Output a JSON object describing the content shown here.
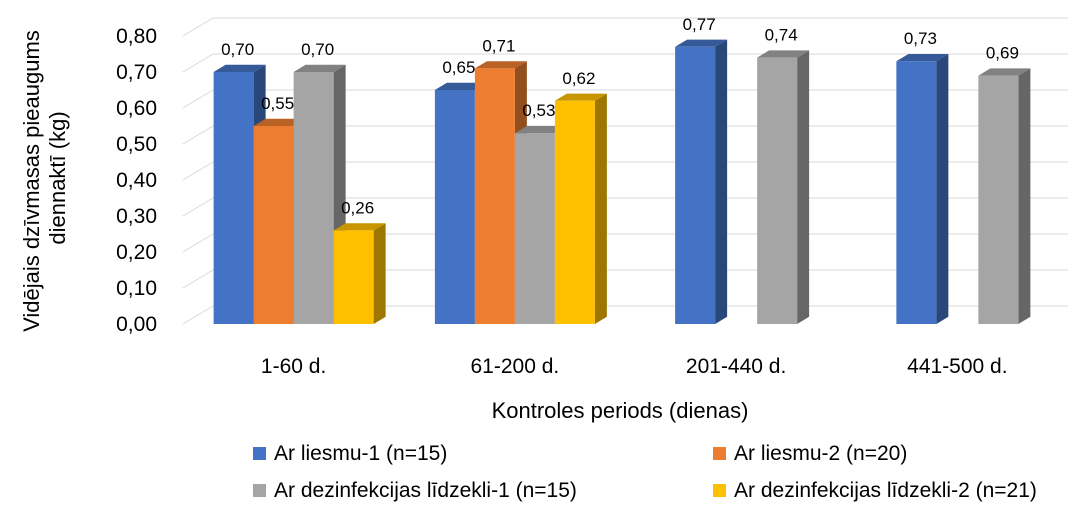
{
  "chart_data": {
    "type": "bar",
    "title": "",
    "xlabel": "Kontroles periods (dienas)",
    "ylabel": "Vidējais dzīvmasas pieaugums diennaktī (kg)",
    "ylabel_lines": [
      "Vidējais dzīvmasas pieaugums",
      "diennaktī (kg)"
    ],
    "ylim": [
      0,
      0.8
    ],
    "yticks": [
      "0,00",
      "0,10",
      "0,20",
      "0,30",
      "0,40",
      "0,50",
      "0,60",
      "0,70",
      "0,80"
    ],
    "grid": true,
    "legend_position": "bottom",
    "categories": [
      "1-60 d.",
      "61-200 d.",
      "201-440 d.",
      "441-500 d."
    ],
    "series": [
      {
        "name": "Ar liesmu-1 (n=15)",
        "color": "#4472C4",
        "values": [
          0.7,
          0.65,
          0.77,
          0.73
        ],
        "labels": [
          "0,70",
          "0,65",
          "0,77",
          "0,73"
        ]
      },
      {
        "name": "Ar liesmu-2 (n=20)",
        "color": "#ED7D31",
        "values": [
          0.55,
          0.71,
          null,
          null
        ],
        "labels": [
          "0,55",
          "0,71",
          "",
          ""
        ]
      },
      {
        "name": "Ar dezinfekcijas līdzekli-1 (n=15)",
        "color": "#A5A5A5",
        "values": [
          0.7,
          0.53,
          0.74,
          0.69
        ],
        "labels": [
          "0,70",
          "0,53",
          "0,74",
          "0,69"
        ]
      },
      {
        "name": "Ar dezinfekcijas līdzekli-2 (n=21)",
        "color": "#FFC000",
        "values": [
          0.26,
          0.62,
          null,
          null
        ],
        "labels": [
          "0,26",
          "0,62",
          "",
          ""
        ]
      }
    ]
  }
}
